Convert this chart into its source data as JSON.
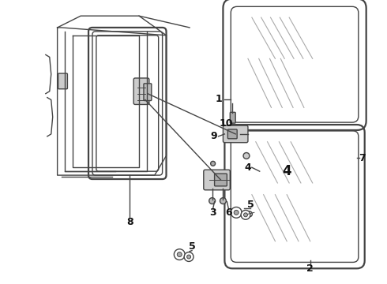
{
  "bg_color": "#ffffff",
  "line_color": "#444444",
  "fig_width": 4.9,
  "fig_height": 3.6,
  "dpi": 100,
  "glass_color": "#e8e8e8",
  "glare_color": "#999999",
  "hw_color": "#888888"
}
